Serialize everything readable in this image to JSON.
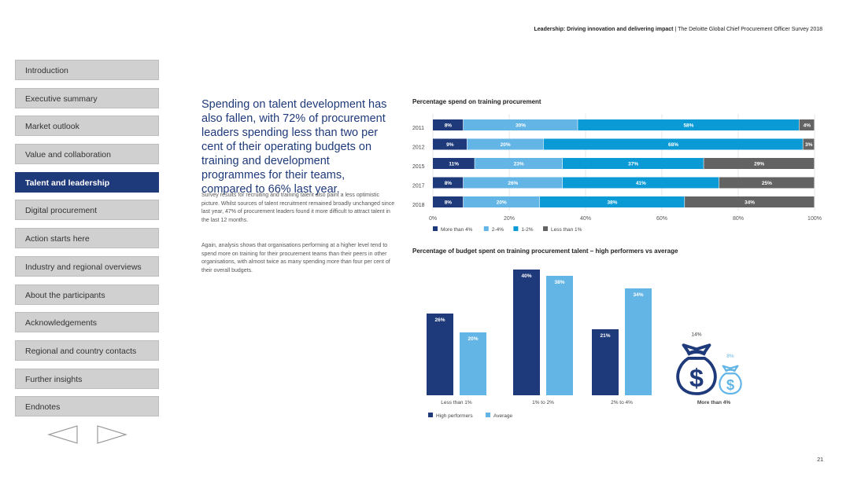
{
  "header": {
    "title_bold": "Leadership: Driving innovation and delivering impact",
    "separator": " | ",
    "subtitle": "The Deloitte Global Chief Procurement Officer Survey 2018"
  },
  "sidebar": {
    "items": [
      {
        "label": "Introduction",
        "active": false
      },
      {
        "label": "Executive summary",
        "active": false
      },
      {
        "label": "Market outlook",
        "active": false
      },
      {
        "label": "Value and collaboration",
        "active": false
      },
      {
        "label": "Talent and leadership",
        "active": true
      },
      {
        "label": "Digital procurement",
        "active": false
      },
      {
        "label": "Action starts here",
        "active": false
      },
      {
        "label": "Industry and regional overviews",
        "active": false
      },
      {
        "label": "About the participants",
        "active": false
      },
      {
        "label": "Acknowledgements",
        "active": false
      },
      {
        "label": "Regional and country contacts",
        "active": false
      },
      {
        "label": "Further insights",
        "active": false
      },
      {
        "label": "Endnotes",
        "active": false
      }
    ]
  },
  "content": {
    "lead": "Spending on talent development has also fallen, with 72% of procurement leaders spending less than two per cent of their operating budgets on training and development programmes for their teams, compared to 66% last year.",
    "paragraph1": "Survey results for recruiting and training talent also paint a less optimistic picture. Whilst sources of talent recruitment remained broadly unchanged since last year, 47% of procurement leaders found it more difficult to attract talent in the last 12 months.",
    "paragraph2": "Again, analysis shows that organisations performing at a higher level tend to spend more on training for their procurement teams than their peers in other organisations, with almost twice as many spending more than four per cent of their overall budgets."
  },
  "page_number": "21",
  "colors": {
    "dark_navy": "#1f3a7a",
    "light_blue": "#62b5e5",
    "medium_blue": "#0a9ad6",
    "gray": "#636363"
  },
  "chart_data": [
    {
      "type": "bar",
      "orientation": "horizontal-stacked",
      "title": "Percentage spend on training procurement",
      "categories": [
        "2011",
        "2012",
        "2015",
        "2017",
        "2018"
      ],
      "series": [
        {
          "name": "More than 4%",
          "values": [
            8,
            9,
            11,
            8,
            8
          ],
          "color": "#1f3a7a"
        },
        {
          "name": "2-4%",
          "values": [
            30,
            20,
            23,
            26,
            20
          ],
          "color": "#62b5e5"
        },
        {
          "name": "1-2%",
          "values": [
            58,
            68,
            37,
            41,
            38
          ],
          "color": "#0a9ad6"
        },
        {
          "name": "Less than 1%",
          "values": [
            4,
            3,
            29,
            25,
            34
          ],
          "color": "#636363"
        }
      ],
      "x_ticks": [
        "0%",
        "20%",
        "40%",
        "60%",
        "80%",
        "100%"
      ],
      "xlim": [
        0,
        100
      ],
      "grid": true,
      "legend": "bottom"
    },
    {
      "type": "bar",
      "title": "Percentage of budget spent on training procurement talent – high performers vs average",
      "categories": [
        "Less than 1%",
        "1% to 2%",
        "2% to 4%",
        "More than 4%"
      ],
      "series": [
        {
          "name": "High performers",
          "values": [
            26,
            40,
            21,
            14
          ],
          "color": "#1f3a7a"
        },
        {
          "name": "Average",
          "values": [
            20,
            38,
            34,
            8
          ],
          "color": "#62b5e5"
        }
      ],
      "ylim": [
        0,
        40
      ],
      "last_category_style": "money-bag-icons",
      "legend": "bottom"
    }
  ]
}
